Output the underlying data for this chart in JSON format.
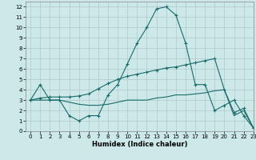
{
  "xlabel": "Humidex (Indice chaleur)",
  "background_color": "#cde8e8",
  "line_color": "#1a6b6b",
  "grid_color": "#b0c8c8",
  "xlim": [
    -0.5,
    23
  ],
  "ylim": [
    0,
    12.5
  ],
  "xticks": [
    0,
    1,
    2,
    3,
    4,
    5,
    6,
    7,
    8,
    9,
    10,
    11,
    12,
    13,
    14,
    15,
    16,
    17,
    18,
    19,
    20,
    21,
    22,
    23
  ],
  "yticks": [
    0,
    1,
    2,
    3,
    4,
    5,
    6,
    7,
    8,
    9,
    10,
    11,
    12
  ],
  "line1_x": [
    0,
    1,
    2,
    3,
    4,
    5,
    6,
    7,
    8,
    9,
    10,
    11,
    12,
    13,
    14,
    15,
    16,
    17,
    18,
    19,
    20,
    21,
    22,
    23
  ],
  "line1_y": [
    3.0,
    4.5,
    3.0,
    3.0,
    1.5,
    1.0,
    1.5,
    1.5,
    3.5,
    4.5,
    6.5,
    8.5,
    10.0,
    11.8,
    12.0,
    11.2,
    8.5,
    4.5,
    4.5,
    2.0,
    2.5,
    3.0,
    1.5,
    0.3
  ],
  "line2_x": [
    0,
    1,
    2,
    3,
    4,
    5,
    6,
    7,
    8,
    9,
    10,
    11,
    12,
    13,
    14,
    15,
    16,
    17,
    18,
    19,
    20,
    21,
    22,
    23
  ],
  "line2_y": [
    3.0,
    3.2,
    3.3,
    3.3,
    3.3,
    3.4,
    3.6,
    4.1,
    4.6,
    5.0,
    5.3,
    5.5,
    5.7,
    5.9,
    6.1,
    6.2,
    6.4,
    6.6,
    6.8,
    7.0,
    4.0,
    1.8,
    2.2,
    0.3
  ],
  "line3_x": [
    0,
    1,
    2,
    3,
    4,
    5,
    6,
    7,
    8,
    9,
    10,
    11,
    12,
    13,
    14,
    15,
    16,
    17,
    18,
    19,
    20,
    21,
    22,
    23
  ],
  "line3_y": [
    3.0,
    3.0,
    3.0,
    3.0,
    2.8,
    2.6,
    2.5,
    2.5,
    2.6,
    2.8,
    3.0,
    3.0,
    3.0,
    3.2,
    3.3,
    3.5,
    3.5,
    3.6,
    3.7,
    3.9,
    4.0,
    1.5,
    2.0,
    0.3
  ]
}
